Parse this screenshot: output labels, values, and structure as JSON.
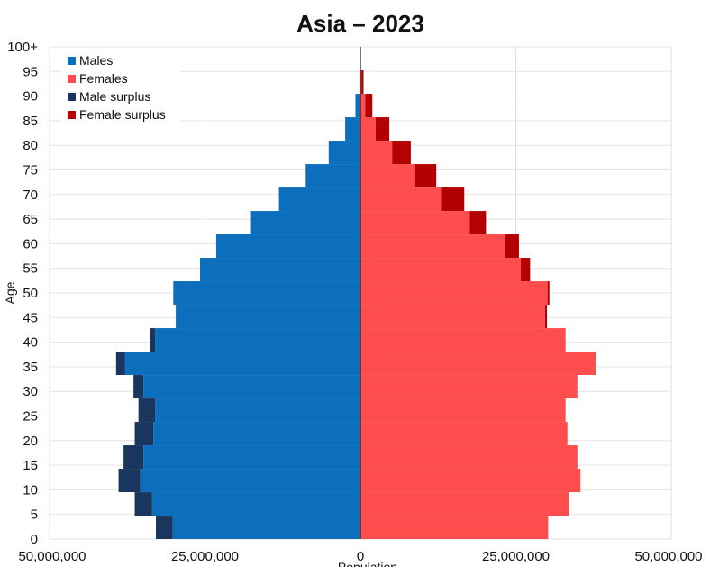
{
  "chart_data": {
    "type": "bar",
    "subtype": "population-pyramid",
    "title": "Asia – 2023",
    "xlabel": "Population",
    "ylabel": "Age",
    "xlim": [
      -50000000,
      50000000
    ],
    "x_tick_labels": [
      "50,000,000",
      "25,000,000",
      "0",
      "25,000,000",
      "50,000,000"
    ],
    "y_tick_labels": [
      "0",
      "5",
      "10",
      "15",
      "20",
      "25",
      "30",
      "35",
      "40",
      "45",
      "50",
      "55",
      "60",
      "65",
      "70",
      "75",
      "80",
      "85",
      "90",
      "95",
      "100+"
    ],
    "grid": true,
    "legend_position": "top-left",
    "legend": [
      {
        "label": "Males",
        "color": "#0b6fbd"
      },
      {
        "label": "Females",
        "color": "#fe4d4d"
      },
      {
        "label": "Male surplus",
        "color": "#1b365e"
      },
      {
        "label": "Female surplus",
        "color": "#b30000"
      }
    ],
    "age_groups": [
      "0",
      "5",
      "10",
      "15",
      "20",
      "25",
      "30",
      "35",
      "40",
      "45",
      "50",
      "55",
      "60",
      "65",
      "70",
      "75",
      "80",
      "85",
      "90",
      "95",
      "100+"
    ],
    "series": [
      {
        "name": "Males",
        "color": "#0b6fbd",
        "values": [
          32900000,
          36300000,
          38900000,
          38100000,
          36300000,
          35700000,
          36500000,
          39300000,
          33800000,
          29700000,
          30100000,
          25800000,
          23200000,
          17600000,
          13100000,
          8800000,
          5100000,
          2450000,
          800000,
          160000,
          15000
        ]
      },
      {
        "name": "Females",
        "color": "#fe4d4d",
        "values": [
          30200000,
          33500000,
          35400000,
          34900000,
          33300000,
          33000000,
          34900000,
          37900000,
          33000000,
          30000000,
          30400000,
          27300000,
          25500000,
          20200000,
          16700000,
          12200000,
          8100000,
          4650000,
          1920000,
          510000,
          75000
        ]
      }
    ]
  }
}
